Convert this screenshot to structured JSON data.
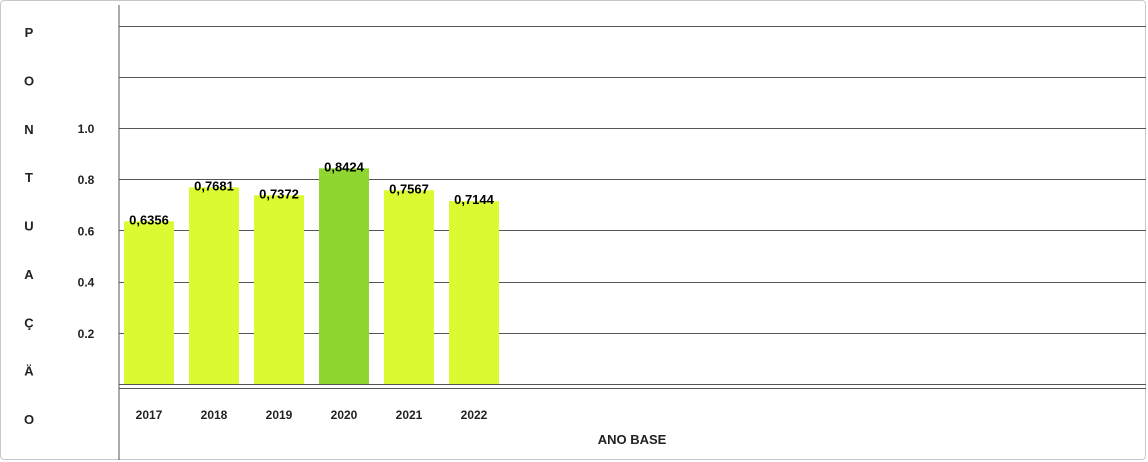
{
  "chart_data": {
    "type": "bar",
    "ylabel": "PONTUAÇÃO",
    "ylabel_letters": [
      "P",
      "O",
      "N",
      "T",
      "U",
      "A",
      "Ç",
      "Ä",
      "O"
    ],
    "xlabel": "ANO BASE",
    "categories": [
      "2017",
      "2018",
      "2019",
      "2020",
      "2021",
      "2022"
    ],
    "values": [
      0.6356,
      0.7681,
      0.7372,
      0.8424,
      0.7567,
      0.7144
    ],
    "value_labels": [
      "0,6356",
      "0,7681",
      "0,7372",
      "0,8424",
      "0,7567",
      "0,7144"
    ],
    "yticks": [
      "0.2",
      "0.4",
      "0.6",
      "0.8",
      "1.0"
    ],
    "ytick_values": [
      0.2,
      0.4,
      0.6,
      0.8,
      1.0
    ],
    "ylim": [
      0,
      1.4
    ],
    "grid": true,
    "colors": {
      "bar": "#dcfa32",
      "highlight": "#8fd631",
      "highlight_index": 3,
      "grid": "#555555",
      "text": "#222222"
    }
  }
}
